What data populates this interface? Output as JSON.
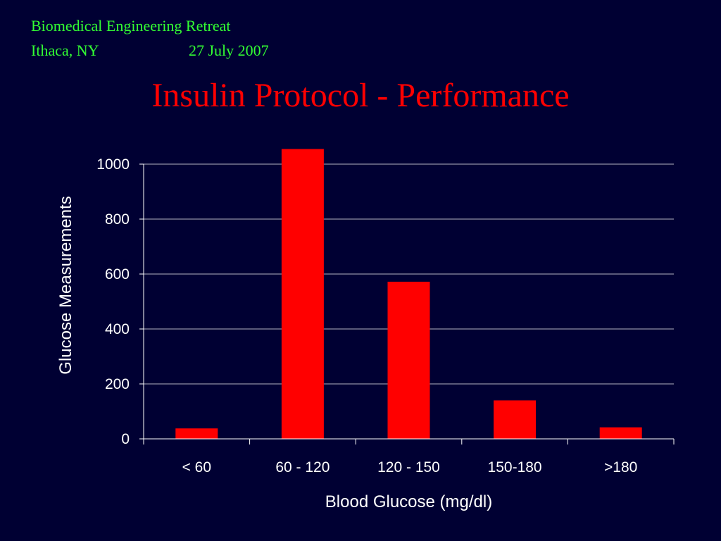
{
  "header": {
    "event": "Biomedical Engineering Retreat",
    "location": "Ithaca, NY",
    "date": "27 July 2007"
  },
  "title": "Insulin Protocol - Performance",
  "colors": {
    "background": "#000033",
    "header_text": "#33ff33",
    "title_text": "#ff0000",
    "bars": "#ff0000",
    "axis_text": "#ffffff",
    "gridlines": "#ffffff"
  },
  "chart_data": {
    "type": "bar",
    "categories": [
      "< 60",
      "60 - 120",
      "120 - 150",
      "150-180",
      ">180"
    ],
    "values": [
      38,
      1055,
      572,
      140,
      42
    ],
    "xlabel": "Blood Glucose (mg/dl)",
    "ylabel": "Glucose Measurements",
    "ylim": [
      0,
      1000
    ],
    "yticks": [
      0,
      200,
      400,
      600,
      800,
      1000
    ],
    "grid": true,
    "legend": "none"
  }
}
